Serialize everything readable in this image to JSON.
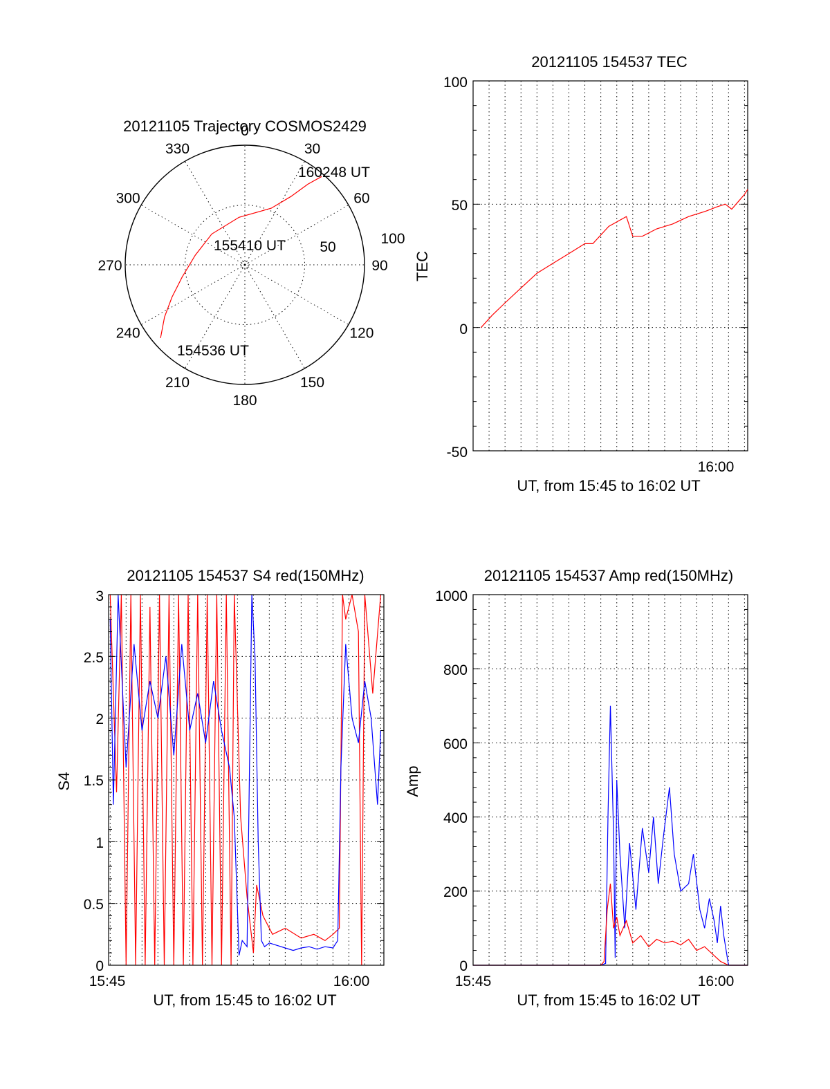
{
  "colors": {
    "red": "#ff0000",
    "blue": "#0000ff",
    "axis": "#000000",
    "background": "#ffffff"
  },
  "polar": {
    "title": "20121105 Trajectory COSMOS2429",
    "azimuth_labels": [
      "0",
      "30",
      "60",
      "90",
      "120",
      "150",
      "180",
      "210",
      "240",
      "270",
      "300",
      "330"
    ],
    "radius_labels": [
      "50",
      "100"
    ],
    "annotations": {
      "start": "154536 UT",
      "mid": "155410 UT",
      "end": "160248 UT"
    },
    "chart_data": {
      "type": "scatter",
      "title": "20121105 Trajectory COSMOS2429",
      "series": [
        {
          "color": "#ff0000",
          "points_az_deg_r": [
            [
              229,
              84
            ],
            [
              237,
              72
            ],
            [
              246,
              60
            ],
            [
              259,
              48
            ],
            [
              281,
              38
            ],
            [
              313,
              34
            ],
            [
              353,
              36
            ],
            [
              25,
              47
            ],
            [
              34,
              62
            ],
            [
              38,
              77
            ],
            [
              41,
              88
            ]
          ]
        }
      ]
    }
  },
  "tec": {
    "title": "20121105 154537 TEC",
    "ylabel": "TEC",
    "xlabel": "UT, from 15:45 to 16:02 UT",
    "yticks": [
      "-50",
      "0",
      "50",
      "100"
    ],
    "xtick_label": "16:00",
    "chart_data": {
      "type": "line",
      "xlim_min": [
        0.0,
        17.2
      ],
      "ylim": [
        -50,
        100
      ],
      "series": [
        {
          "color": "#ff0000",
          "x_min_after_1545": [
            0.5,
            1.2,
            2.0,
            3.0,
            4.0,
            5.0,
            6.0,
            7.0,
            7.5,
            8.5,
            9.6,
            10.0,
            10.6,
            11.5,
            12.5,
            13.5,
            14.5,
            15.3,
            15.8,
            16.2,
            16.6,
            17.0,
            17.2
          ],
          "y": [
            0,
            5,
            10,
            16,
            22,
            26,
            30,
            34,
            34,
            41,
            45,
            37,
            37,
            40,
            42,
            45,
            47,
            49,
            50,
            48,
            51,
            54,
            56
          ]
        }
      ]
    }
  },
  "s4": {
    "title": "20121105 154537 S4 red(150MHz)",
    "ylabel": "S4",
    "xlabel": "UT, from 15:45 to 16:02 UT",
    "yticks": [
      "0",
      "0.5",
      "1",
      "1.5",
      "2",
      "2.5",
      "3"
    ],
    "xticks": [
      "15:45",
      "16:00"
    ],
    "chart_data": {
      "type": "line",
      "xlim_min": [
        -0.1,
        17.2
      ],
      "ylim": [
        0,
        3
      ],
      "series": [
        {
          "color": "#ff0000",
          "x_min_after_1545": [
            0.0,
            0.4,
            0.7,
            1.0,
            1.3,
            1.6,
            1.9,
            2.2,
            2.5,
            2.8,
            3.1,
            3.4,
            3.7,
            4.0,
            4.3,
            4.6,
            4.9,
            5.2,
            5.5,
            5.8,
            6.1,
            6.4,
            6.7,
            7.0,
            7.3,
            7.6,
            7.8,
            8.2,
            8.6,
            9.0,
            9.2,
            9.6,
            10.2,
            11.0,
            12.0,
            12.8,
            13.5,
            14.0,
            14.4,
            14.6,
            14.8,
            15.2,
            15.6,
            15.8,
            16.0,
            16.5,
            17.0
          ],
          "y": [
            3.0,
            1.4,
            3.0,
            0.0,
            3.0,
            0.0,
            3.0,
            0.0,
            2.9,
            0.0,
            3.0,
            0.0,
            3.0,
            0.0,
            3.0,
            0.0,
            3.0,
            0.0,
            3.0,
            0.0,
            3.0,
            0.0,
            3.0,
            0.0,
            3.0,
            0.0,
            3.0,
            1.2,
            0.55,
            0.1,
            0.65,
            0.4,
            0.25,
            0.3,
            0.22,
            0.25,
            0.2,
            0.25,
            0.3,
            3.0,
            2.8,
            3.0,
            2.7,
            0.0,
            3.0,
            2.2,
            3.0
          ]
        },
        {
          "color": "#0000ff",
          "x_min_after_1545": [
            0.0,
            0.2,
            0.5,
            1.0,
            1.5,
            2.0,
            2.5,
            3.0,
            3.5,
            4.0,
            4.5,
            5.0,
            5.5,
            6.0,
            6.5,
            7.0,
            7.5,
            7.8,
            8.1,
            8.3,
            8.6,
            8.9,
            9.1,
            9.3,
            9.5,
            9.7,
            10.0,
            10.5,
            11.0,
            11.5,
            12.0,
            12.5,
            13.0,
            13.5,
            14.0,
            14.3,
            14.5,
            14.8,
            15.2,
            15.6,
            16.0,
            16.4,
            16.8,
            17.0
          ],
          "y": [
            2.8,
            1.3,
            3.0,
            1.6,
            2.6,
            1.9,
            2.3,
            2.0,
            2.5,
            1.7,
            2.6,
            1.9,
            2.2,
            1.8,
            2.3,
            1.9,
            1.6,
            1.2,
            0.08,
            0.2,
            0.15,
            3.0,
            2.5,
            1.0,
            0.2,
            0.15,
            0.18,
            0.16,
            0.14,
            0.12,
            0.14,
            0.15,
            0.13,
            0.15,
            0.14,
            0.2,
            1.6,
            2.6,
            2.0,
            1.8,
            2.3,
            2.0,
            1.3,
            1.9
          ]
        }
      ]
    }
  },
  "amp": {
    "title": "20121105 154537 Amp red(150MHz)",
    "ylabel": "Amp",
    "xlabel": "UT, from 15:45 to 16:02 UT",
    "yticks": [
      "0",
      "200",
      "400",
      "600",
      "800",
      "1000"
    ],
    "xticks": [
      "15:45",
      "16:00"
    ],
    "chart_data": {
      "type": "line",
      "xlim_min": [
        0.0,
        17.2
      ],
      "ylim": [
        0,
        1000
      ],
      "series": [
        {
          "color": "#0000ff",
          "x_min_after_1545": [
            0.0,
            8.0,
            8.3,
            8.45,
            8.6,
            8.8,
            8.9,
            9.0,
            9.2,
            9.5,
            9.8,
            10.2,
            10.6,
            11.0,
            11.3,
            11.6,
            11.9,
            12.3,
            12.6,
            13.0,
            13.5,
            13.8,
            14.2,
            14.5,
            14.8,
            15.1,
            15.3,
            15.5,
            15.7,
            16.0,
            17.2
          ],
          "y": [
            0,
            0,
            5,
            400,
            700,
            350,
            20,
            500,
            300,
            100,
            330,
            150,
            370,
            250,
            400,
            220,
            340,
            480,
            300,
            200,
            220,
            300,
            150,
            100,
            180,
            120,
            60,
            160,
            80,
            0,
            0
          ]
        },
        {
          "color": "#ff0000",
          "x_min_after_1545": [
            0.0,
            8.0,
            8.2,
            8.4,
            8.6,
            8.8,
            9.0,
            9.2,
            9.6,
            10.0,
            10.5,
            11.0,
            11.5,
            12.0,
            12.5,
            13.0,
            13.5,
            14.0,
            14.5,
            15.0,
            15.5,
            16.0,
            17.2
          ],
          "y": [
            0,
            0,
            10,
            150,
            220,
            100,
            130,
            80,
            120,
            60,
            80,
            50,
            70,
            60,
            65,
            55,
            70,
            40,
            50,
            30,
            10,
            0,
            0
          ]
        }
      ]
    }
  }
}
